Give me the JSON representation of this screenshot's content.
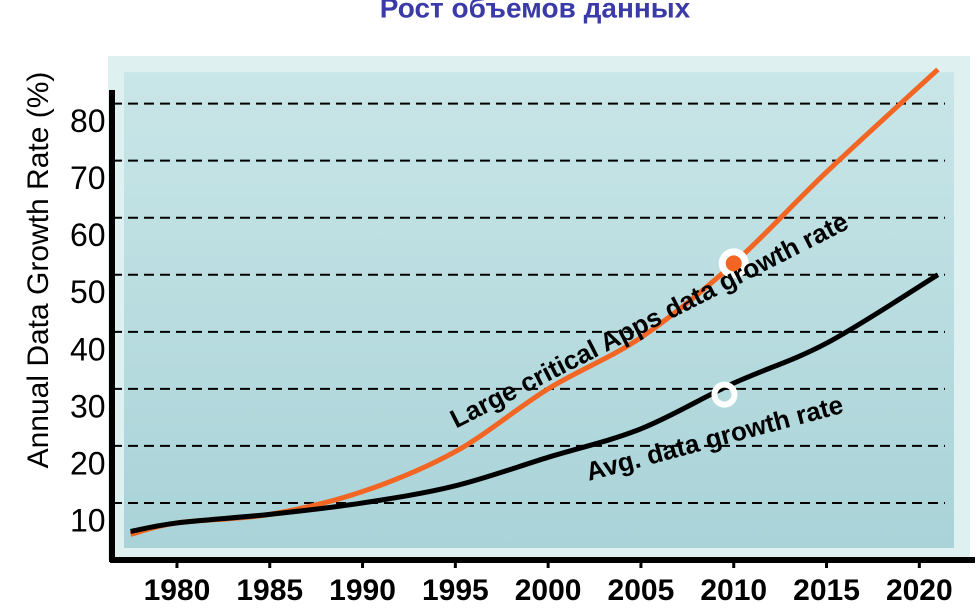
{
  "chart_data": {
    "type": "line",
    "title": "Рост объемов данных",
    "y_label": "Annual Data Growth Rate (%)",
    "x": [
      1977.5,
      1980,
      1985,
      1990,
      1995,
      2000,
      2005,
      2010,
      2015,
      2021
    ],
    "series": [
      {
        "name": "Large critical Apps data growth rate",
        "color": "#f26522",
        "values": [
          4.5,
          6.5,
          8,
          12,
          19,
          30,
          39,
          52,
          68,
          86
        ]
      },
      {
        "name": "Avg. data growth rate",
        "color": "#000000",
        "values": [
          5,
          6.5,
          8,
          10,
          13,
          18,
          23,
          31,
          38,
          50
        ]
      }
    ],
    "markers": [
      {
        "x": 2010,
        "y": 52,
        "color": "#f26522",
        "filled": true
      },
      {
        "x": 2009.5,
        "y": 29,
        "color": "#ffffff",
        "filled": false
      }
    ],
    "xlim": [
      1976.5,
      2023
    ],
    "ylim": [
      0,
      88
    ],
    "xticks": [
      1980,
      1985,
      1990,
      1995,
      2000,
      2005,
      2010,
      2015,
      2020
    ],
    "yticks": [
      10,
      20,
      30,
      40,
      50,
      60,
      70,
      80
    ],
    "grid": true
  }
}
